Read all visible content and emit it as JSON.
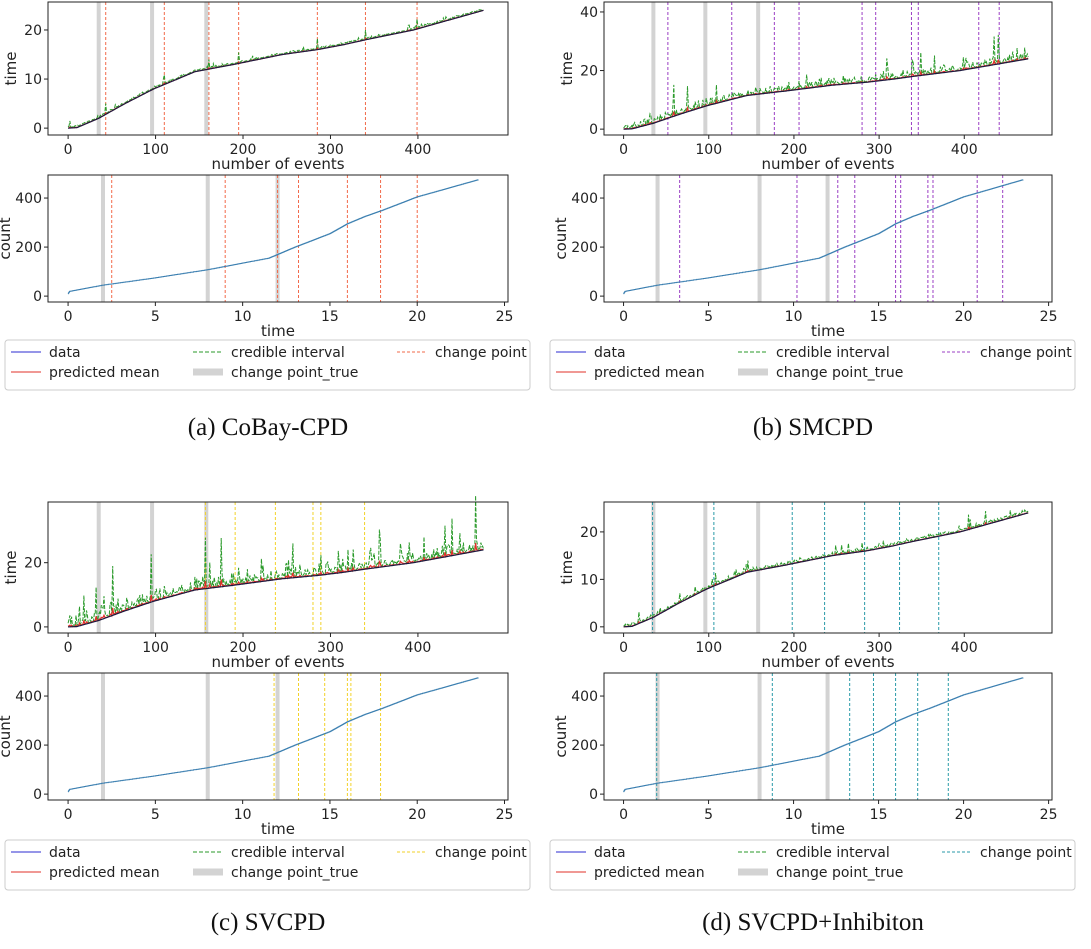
{
  "captions": [
    "(a) CoBay-CPD",
    "(b) SMCPD",
    "(c) SVCPD",
    "(d) SVCPD+Inhibiton"
  ],
  "legend": {
    "items": [
      "data",
      "predicted mean",
      "credible interval",
      "change point_true",
      "change point"
    ],
    "colors": {
      "data": "#2b2bd0",
      "predicted mean": "#e0302a",
      "credible interval": "#2a9a2a",
      "change point_true": "#d3d3d3"
    }
  },
  "series_data": {
    "event_time_curve": [
      [
        0,
        0
      ],
      [
        10,
        0.1
      ],
      [
        35,
        2
      ],
      [
        65,
        5
      ],
      [
        98,
        8
      ],
      [
        125,
        10
      ],
      [
        145,
        11.5
      ],
      [
        160,
        12
      ],
      [
        190,
        13
      ],
      [
        245,
        15
      ],
      [
        285,
        16
      ],
      [
        315,
        17
      ],
      [
        340,
        18
      ],
      [
        395,
        20
      ],
      [
        415,
        21
      ],
      [
        475,
        24
      ]
    ]
  },
  "chart_data": [
    {
      "panel": "a",
      "type": "line",
      "plot": "top",
      "xlabel": "number of events",
      "ylabel": "time",
      "xlim": [
        -23,
        503
      ],
      "ylim": [
        -1.4,
        25.7
      ],
      "xticks": [
        0,
        100,
        200,
        300,
        400
      ],
      "yticks": [
        0,
        10,
        20
      ],
      "true_change_points": [
        35,
        96,
        158
      ],
      "change_points": [
        43,
        110,
        161,
        195,
        285,
        340,
        399
      ],
      "change_point_color": "#f26a4a"
    },
    {
      "panel": "a",
      "type": "line",
      "plot": "bottom",
      "xlabel": "time",
      "ylabel": "count",
      "xlim": [
        -1.15,
        25.2
      ],
      "ylim": [
        -24,
        494
      ],
      "xticks": [
        0,
        5,
        10,
        15,
        20,
        25
      ],
      "yticks": [
        0,
        200,
        400
      ],
      "true_change_points": [
        2,
        8,
        12
      ],
      "change_points": [
        2.5,
        9.0,
        12.0,
        13.2,
        16.0,
        17.9,
        20.0
      ],
      "change_point_color": "#f26a4a"
    },
    {
      "panel": "b",
      "type": "line",
      "plot": "top",
      "xlabel": "number of events",
      "ylabel": "time",
      "xlim": [
        -23,
        503
      ],
      "ylim": [
        -2.0,
        43.4
      ],
      "xticks": [
        0,
        100,
        200,
        300,
        400
      ],
      "yticks": [
        0,
        20,
        40
      ],
      "true_change_points": [
        35,
        96,
        158
      ],
      "change_points": [
        52,
        127,
        177,
        206,
        280,
        296,
        338,
        346,
        417,
        441
      ],
      "change_point_color": "#9b3fc4"
    },
    {
      "panel": "b",
      "type": "line",
      "plot": "bottom",
      "xlabel": "time",
      "ylabel": "count",
      "xlim": [
        -1.15,
        25.2
      ],
      "ylim": [
        -24,
        494
      ],
      "xticks": [
        0,
        5,
        10,
        15,
        20,
        25
      ],
      "yticks": [
        0,
        200,
        400
      ],
      "true_change_points": [
        2,
        8,
        12
      ],
      "change_points": [
        3.3,
        10.2,
        12.6,
        13.6,
        16.0,
        16.3,
        17.9,
        18.2,
        20.8,
        22.3
      ],
      "change_point_color": "#9b3fc4"
    },
    {
      "panel": "c",
      "type": "line",
      "plot": "top",
      "xlabel": "number of events",
      "ylabel": "time",
      "xlim": [
        -23,
        503
      ],
      "ylim": [
        -1.9,
        38.9
      ],
      "xticks": [
        0,
        100,
        200,
        300,
        400
      ],
      "yticks": [
        0,
        20
      ],
      "true_change_points": [
        35,
        96,
        158
      ],
      "change_points": [
        157,
        191,
        237,
        280,
        289,
        339
      ],
      "change_point_color": "#f2d22a"
    },
    {
      "panel": "c",
      "type": "line",
      "plot": "bottom",
      "xlabel": "time",
      "ylabel": "count",
      "xlim": [
        -1.15,
        25.2
      ],
      "ylim": [
        -24,
        494
      ],
      "xticks": [
        0,
        5,
        10,
        15,
        20,
        25
      ],
      "yticks": [
        0,
        200,
        400
      ],
      "true_change_points": [
        2,
        8,
        12
      ],
      "change_points": [
        11.8,
        13.2,
        14.7,
        16.0,
        16.2,
        17.9
      ],
      "change_point_color": "#f2d22a"
    },
    {
      "panel": "d",
      "type": "line",
      "plot": "top",
      "xlabel": "number of events",
      "ylabel": "time",
      "xlim": [
        -23,
        503
      ],
      "ylim": [
        -1.3,
        26.3
      ],
      "xticks": [
        0,
        100,
        200,
        300,
        400
      ],
      "yticks": [
        0,
        10,
        20
      ],
      "true_change_points": [
        35,
        96,
        158
      ],
      "change_points": [
        34,
        106,
        198,
        236,
        283,
        324,
        370
      ],
      "change_point_color": "#2a9aa8"
    },
    {
      "panel": "d",
      "type": "line",
      "plot": "bottom",
      "xlabel": "time",
      "ylabel": "count",
      "xlim": [
        -1.15,
        25.2
      ],
      "ylim": [
        -24,
        494
      ],
      "xticks": [
        0,
        5,
        10,
        15,
        20,
        25
      ],
      "yticks": [
        0,
        200,
        400
      ],
      "true_change_points": [
        2,
        8,
        12
      ],
      "change_points": [
        1.95,
        8.75,
        13.3,
        14.7,
        16.0,
        17.3,
        19.1
      ],
      "change_point_color": "#2a9aa8"
    }
  ]
}
